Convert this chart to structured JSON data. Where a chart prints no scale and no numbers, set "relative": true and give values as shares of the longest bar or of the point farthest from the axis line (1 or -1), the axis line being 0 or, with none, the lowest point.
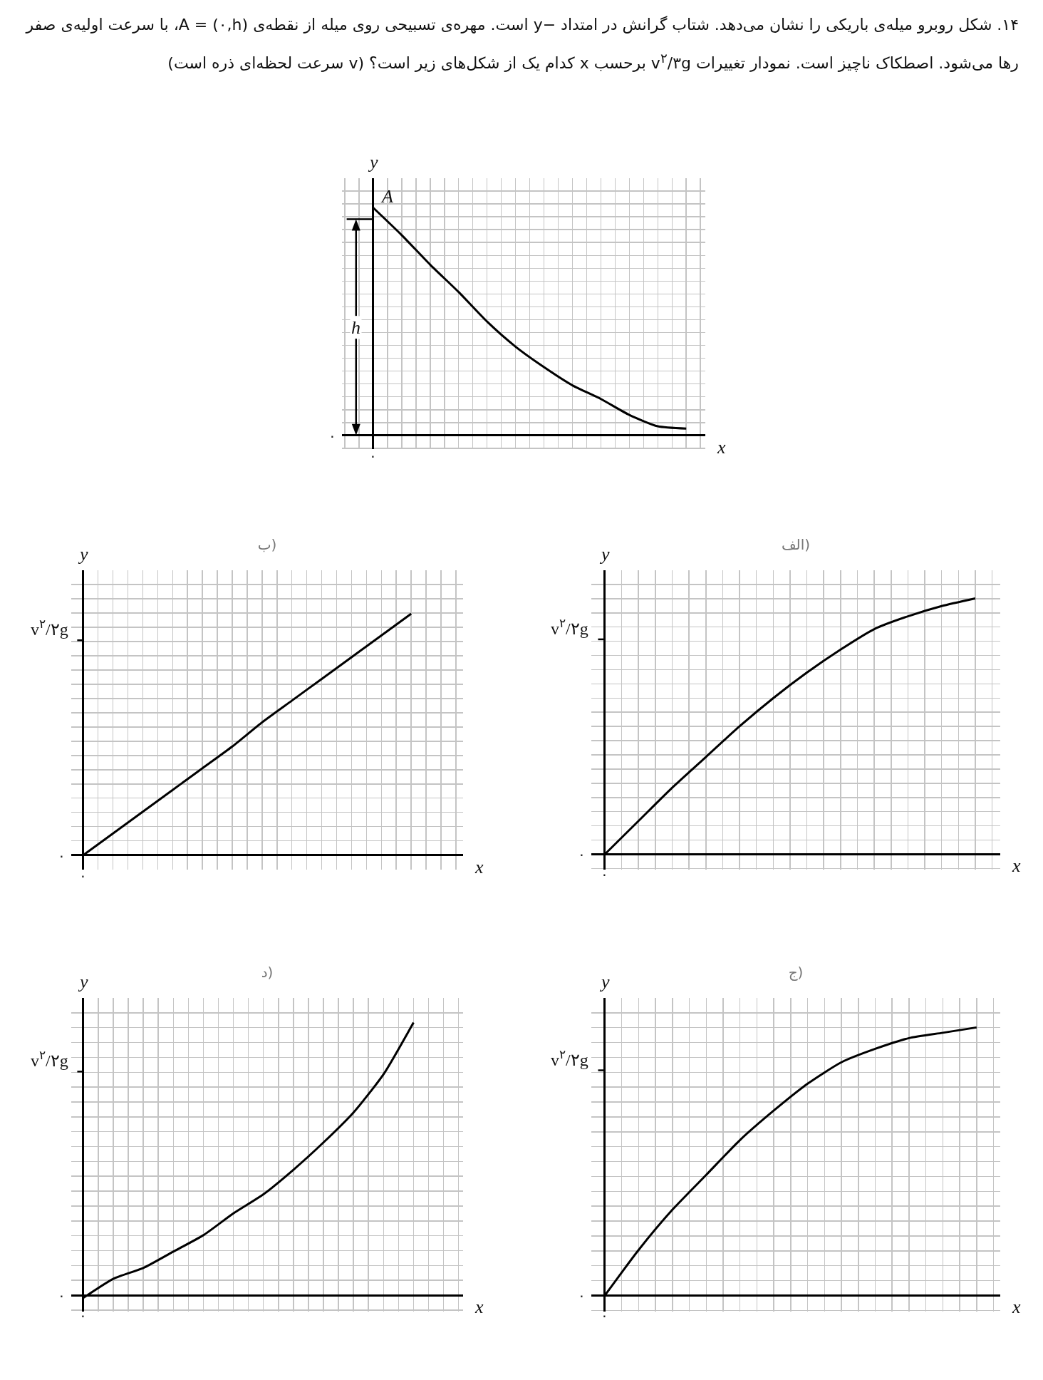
{
  "chart_data": [
    {
      "type": "line",
      "title": "۱۴. شکل روبرو میله‌ی باریکی را نشان می‌دهد. شتاب گرانش در امتداد −y است. مهره‌ی تسبیحی روی میله از نقطه‌ی A = (۰,h)، با سرعت اولیه‌ی صفر رها می‌شود. اصطکاک ناچیز است. نمودار تغییرات v$^{۲}$/۳g برحسب x کدام یک از شکل‌های زیر است؟ (v سرعت لحظه‌ای ذره است)",
      "xlabel": "x",
      "ylabel": "y",
      "relative": true,
      "grid": true,
      "categories": [
        null,
        null,
        null,
        null,
        null,
        null,
        null,
        null,
        null,
        null,
        null,
        null
      ],
      "series": [
        {
          "color": "#000000",
          "values": [
            1.0,
            0.88,
            0.75,
            0.63,
            0.5,
            0.39,
            0.3,
            0.22,
            0.16,
            0.09,
            0.04,
            0.03
          ]
        }
      ],
      "annotations": [
        "۰",
        "۰",
        "A",
        "h"
      ]
    },
    {
      "type": "line",
      "title": "الف)",
      "xlabel": "x",
      "ylabel": "y",
      "relative": true,
      "grid": true,
      "categories": [
        null,
        null,
        null,
        null,
        null,
        null,
        null,
        null,
        null,
        null,
        null,
        null
      ],
      "series": [
        {
          "color": "#000000",
          "values": [
            0,
            0.13,
            0.26,
            0.38,
            0.5,
            0.61,
            0.71,
            0.8,
            0.88,
            0.93,
            0.97,
            1.0
          ]
        }
      ],
      "annotations": [
        "۰",
        "۰",
        "v$^{۲}$/۲g"
      ]
    },
    {
      "type": "line",
      "title": "ب)",
      "xlabel": "x",
      "ylabel": "y",
      "relative": true,
      "grid": true,
      "categories": [
        null,
        null,
        null,
        null,
        null,
        null,
        null,
        null,
        null,
        null,
        null,
        null
      ],
      "series": [
        {
          "color": "#000000",
          "values": [
            0,
            0.09,
            0.18,
            0.27,
            0.36,
            0.45,
            0.55,
            0.64,
            0.73,
            0.82,
            0.91,
            1.0
          ]
        }
      ],
      "annotations": [
        "۰",
        "۰",
        "v$^{۲}$/۲g"
      ]
    },
    {
      "type": "line",
      "title": "ج)",
      "xlabel": "x",
      "ylabel": "y",
      "relative": true,
      "grid": true,
      "categories": [
        null,
        null,
        null,
        null,
        null,
        null,
        null,
        null,
        null,
        null,
        null,
        null
      ],
      "series": [
        {
          "color": "#000000",
          "values": [
            0,
            0.17,
            0.32,
            0.45,
            0.58,
            0.69,
            0.79,
            0.87,
            0.92,
            0.96,
            0.98,
            1.0
          ]
        }
      ],
      "annotations": [
        "۰",
        "۰",
        "v$^{۲}$/۲g"
      ]
    },
    {
      "type": "line",
      "title": "د)",
      "xlabel": "x",
      "ylabel": "y",
      "relative": true,
      "grid": true,
      "categories": [
        null,
        null,
        null,
        null,
        null,
        null,
        null,
        null,
        null,
        null,
        null,
        null
      ],
      "series": [
        {
          "color": "#000000",
          "values": [
            -0.01,
            0.06,
            0.1,
            0.16,
            0.22,
            0.3,
            0.37,
            0.46,
            0.56,
            0.67,
            0.81,
            1.0
          ]
        }
      ],
      "annotations": [
        "۰",
        "۰",
        "v$^{۲}$/۲g"
      ]
    }
  ]
}
